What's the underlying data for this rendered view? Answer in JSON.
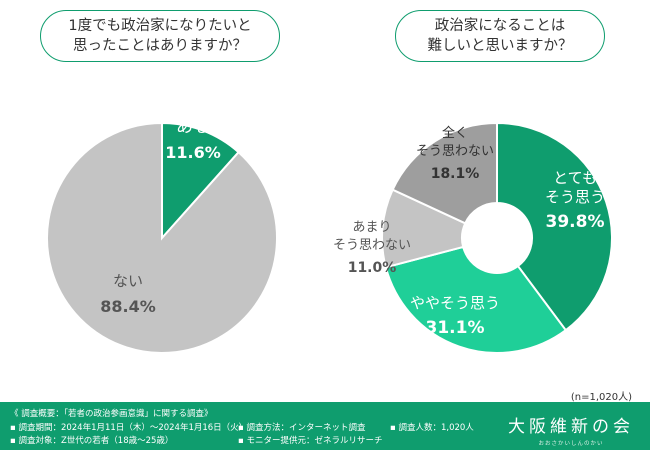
{
  "chart_data": [
    {
      "type": "pie",
      "title": "1度でも政治家になりたいと\n思ったことはありますか？",
      "slices": [
        {
          "label": "ある",
          "value": 11.6,
          "display": "11.6%",
          "color": "#0f9d6e"
        },
        {
          "label": "ない",
          "value": 88.4,
          "display": "88.4%",
          "color": "#c4c4c4"
        }
      ]
    },
    {
      "type": "pie",
      "donut": true,
      "title": "政治家になることは\n難しいと思いますか？",
      "slices": [
        {
          "label": "とても\nそう思う",
          "value": 39.8,
          "display": "39.8%",
          "color": "#0f9d6e"
        },
        {
          "label": "ややそう思う",
          "value": 31.1,
          "display": "31.1%",
          "color": "#1fcf98"
        },
        {
          "label": "あまり\nそう思わない",
          "value": 11.0,
          "display": "11.0%",
          "color": "#c4c4c4"
        },
        {
          "label": "全く\nそう思わない",
          "value": 18.1,
          "display": "18.1%",
          "color": "#9e9e9e"
        }
      ]
    }
  ],
  "sample_note": "(n=1,020人)",
  "footer": {
    "overview": "《 調査概要：「若者の政治参画意識」に関する調査》",
    "period": "▪ 調査期間：2024年1月11日（木）～2024年1月16日（火）",
    "target": "▪ 調査対象：Z世代の若者（18歳～25歳）",
    "method": "▪ 調査方法：インターネット調査",
    "provider": "▪ モニター提供元：ゼネラルリサーチ",
    "count": "▪ 調査人数：1,020人",
    "brand": "大阪維新の会",
    "brand_sub": "おおさかいしんのかい"
  }
}
